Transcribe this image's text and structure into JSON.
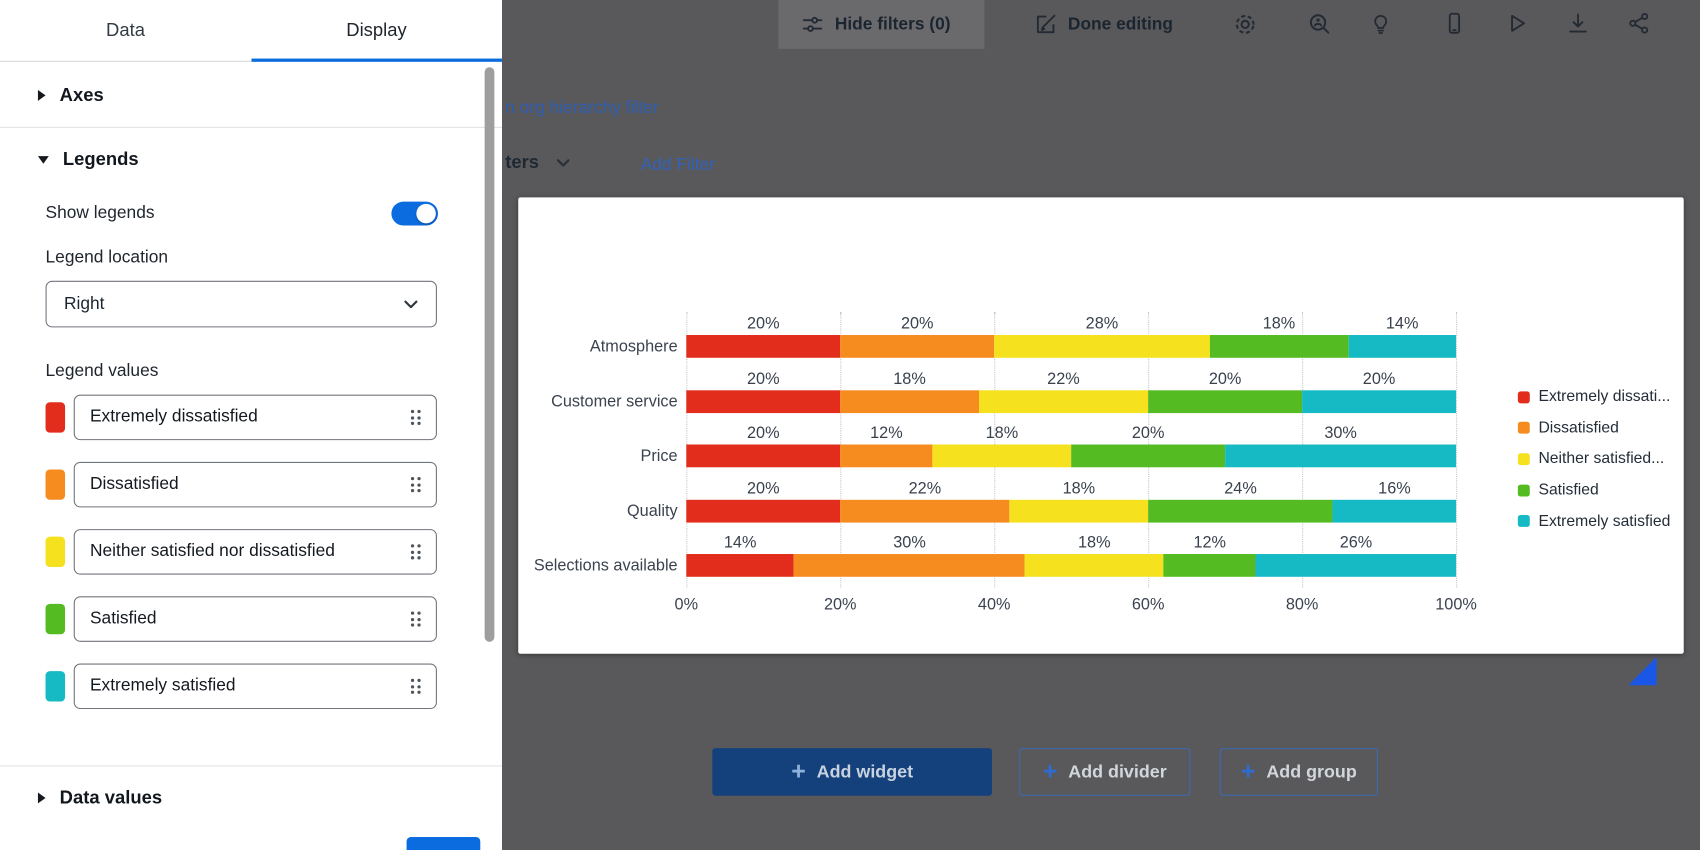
{
  "colors": {
    "accent_blue": "#0b6ce0",
    "overlay_background": "#59595b",
    "toolbar_highlight": "#6a6a6c",
    "resize_handle_blue": "#1a57e6"
  },
  "panel": {
    "tabs": [
      {
        "label": "Data"
      },
      {
        "label": "Display"
      }
    ],
    "axes_section_label": "Axes",
    "legends_section_label": "Legends",
    "show_legends_label": "Show legends",
    "legend_location_label": "Legend location",
    "legend_location_value": "Right",
    "legend_values_label": "Legend values",
    "legend_values": [
      {
        "label": "Extremely dissatisfied",
        "color": "#e22d1d"
      },
      {
        "label": "Dissatisfied",
        "color": "#f68c1f"
      },
      {
        "label": "Neither satisfied nor dissatisfied",
        "color": "#f5e11e"
      },
      {
        "label": "Satisfied",
        "color": "#55bb22"
      },
      {
        "label": "Extremely satisfied",
        "color": "#16bac5"
      }
    ],
    "data_values_section_label": "Data values"
  },
  "toolbar": {
    "hide_filters_label": "Hide filters (0)",
    "done_editing_label": "Done editing",
    "icons": [
      "filter-sliders",
      "edit-pencil",
      "gear",
      "accessibility-review",
      "lightbulb",
      "phone",
      "play",
      "download",
      "share"
    ]
  },
  "background_page": {
    "hierarchy_filter_partial": "n org hierarchy filter",
    "filters_partial": "ters",
    "add_filter_label": "Add Filter"
  },
  "chart_data": {
    "type": "bar",
    "orientation": "horizontal",
    "stacked": true,
    "value_format": "percent",
    "categories": [
      "Atmosphere",
      "Customer service",
      "Price",
      "Quality",
      "Selections available"
    ],
    "series": [
      {
        "name": "Extremely dissatisfied",
        "color": "#e22d1d",
        "values": [
          20,
          20,
          20,
          20,
          14
        ]
      },
      {
        "name": "Dissatisfied",
        "color": "#f68c1f",
        "values": [
          20,
          18,
          12,
          22,
          30
        ]
      },
      {
        "name": "Neither satisfied nor dissatisfied",
        "color": "#f5e11e",
        "values": [
          28,
          22,
          18,
          18,
          18
        ]
      },
      {
        "name": "Satisfied",
        "color": "#55bb22",
        "values": [
          18,
          20,
          20,
          24,
          12
        ]
      },
      {
        "name": "Extremely satisfied",
        "color": "#16bac5",
        "values": [
          14,
          20,
          30,
          16,
          26
        ]
      }
    ],
    "x_ticks": [
      "0%",
      "20%",
      "40%",
      "60%",
      "80%",
      "100%"
    ],
    "xlim": [
      0,
      100
    ],
    "grid": "dotted-vertical",
    "legend_position": "right",
    "legend_labels": [
      "Extremely dissati...",
      "Dissatisfied",
      "Neither satisfied...",
      "Satisfied",
      "Extremely satisfied"
    ]
  },
  "canvas_actions": {
    "add_widget_label": "Add widget",
    "add_divider_label": "Add divider",
    "add_group_label": "Add group"
  }
}
